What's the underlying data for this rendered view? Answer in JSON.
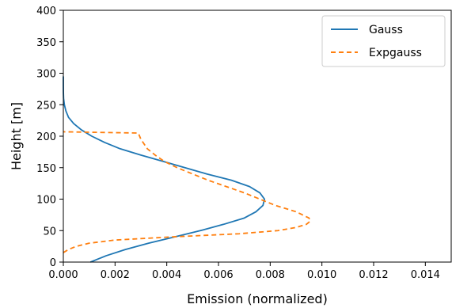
{
  "chart_data": {
    "type": "line",
    "title": "",
    "xlabel": "Emission (normalized)",
    "ylabel": "Height [m]",
    "xlim": [
      0,
      0.015
    ],
    "ylim": [
      0,
      400
    ],
    "xticks": [
      0.0,
      0.002,
      0.004,
      0.006,
      0.008,
      0.01,
      0.012,
      0.014
    ],
    "xtick_labels": [
      "0.000",
      "0.002",
      "0.004",
      "0.006",
      "0.008",
      "0.010",
      "0.012",
      "0.014"
    ],
    "yticks": [
      0,
      50,
      100,
      150,
      200,
      250,
      300,
      350,
      400
    ],
    "ytick_labels": [
      "0",
      "50",
      "100",
      "150",
      "200",
      "250",
      "300",
      "350",
      "400"
    ],
    "grid": false,
    "legend_position": "top-right",
    "series": [
      {
        "name": "Gauss",
        "color": "#1f77b4",
        "linestyle": "solid",
        "points": [
          [
            0.00105,
            0
          ],
          [
            0.00165,
            10
          ],
          [
            0.0024,
            20
          ],
          [
            0.0033,
            30
          ],
          [
            0.0043,
            40
          ],
          [
            0.0053,
            50
          ],
          [
            0.0062,
            60
          ],
          [
            0.007,
            70
          ],
          [
            0.00745,
            80
          ],
          [
            0.00772,
            90
          ],
          [
            0.00778,
            100
          ],
          [
            0.0076,
            110
          ],
          [
            0.0072,
            120
          ],
          [
            0.0065,
            130
          ],
          [
            0.00555,
            140
          ],
          [
            0.0047,
            150
          ],
          [
            0.00385,
            160
          ],
          [
            0.003,
            170
          ],
          [
            0.0022,
            180
          ],
          [
            0.0016,
            190
          ],
          [
            0.0011,
            200
          ],
          [
            0.0007,
            210
          ],
          [
            0.0004,
            220
          ],
          [
            0.0002,
            230
          ],
          [
            0.0001,
            240
          ],
          [
            4e-05,
            250
          ],
          [
            1e-05,
            260
          ],
          [
            2e-06,
            270
          ],
          [
            0.0,
            280
          ],
          [
            0.0,
            295
          ]
        ]
      },
      {
        "name": "Expgauss",
        "color": "#ff7f0e",
        "linestyle": "dashed",
        "points": [
          [
            0.0,
            15
          ],
          [
            0.0002,
            20
          ],
          [
            0.0005,
            25
          ],
          [
            0.001,
            30
          ],
          [
            0.002,
            35
          ],
          [
            0.0042,
            40
          ],
          [
            0.0068,
            45
          ],
          [
            0.0083,
            50
          ],
          [
            0.009,
            55
          ],
          [
            0.0094,
            60
          ],
          [
            0.00955,
            65
          ],
          [
            0.0095,
            70
          ],
          [
            0.009,
            80
          ],
          [
            0.0082,
            90
          ],
          [
            0.0076,
            100
          ],
          [
            0.007,
            110
          ],
          [
            0.0063,
            120
          ],
          [
            0.0056,
            130
          ],
          [
            0.005,
            140
          ],
          [
            0.0044,
            150
          ],
          [
            0.0039,
            160
          ],
          [
            0.00355,
            170
          ],
          [
            0.00325,
            180
          ],
          [
            0.003,
            195
          ],
          [
            0.0029,
            205
          ],
          [
            0.0,
            207
          ]
        ]
      }
    ]
  }
}
